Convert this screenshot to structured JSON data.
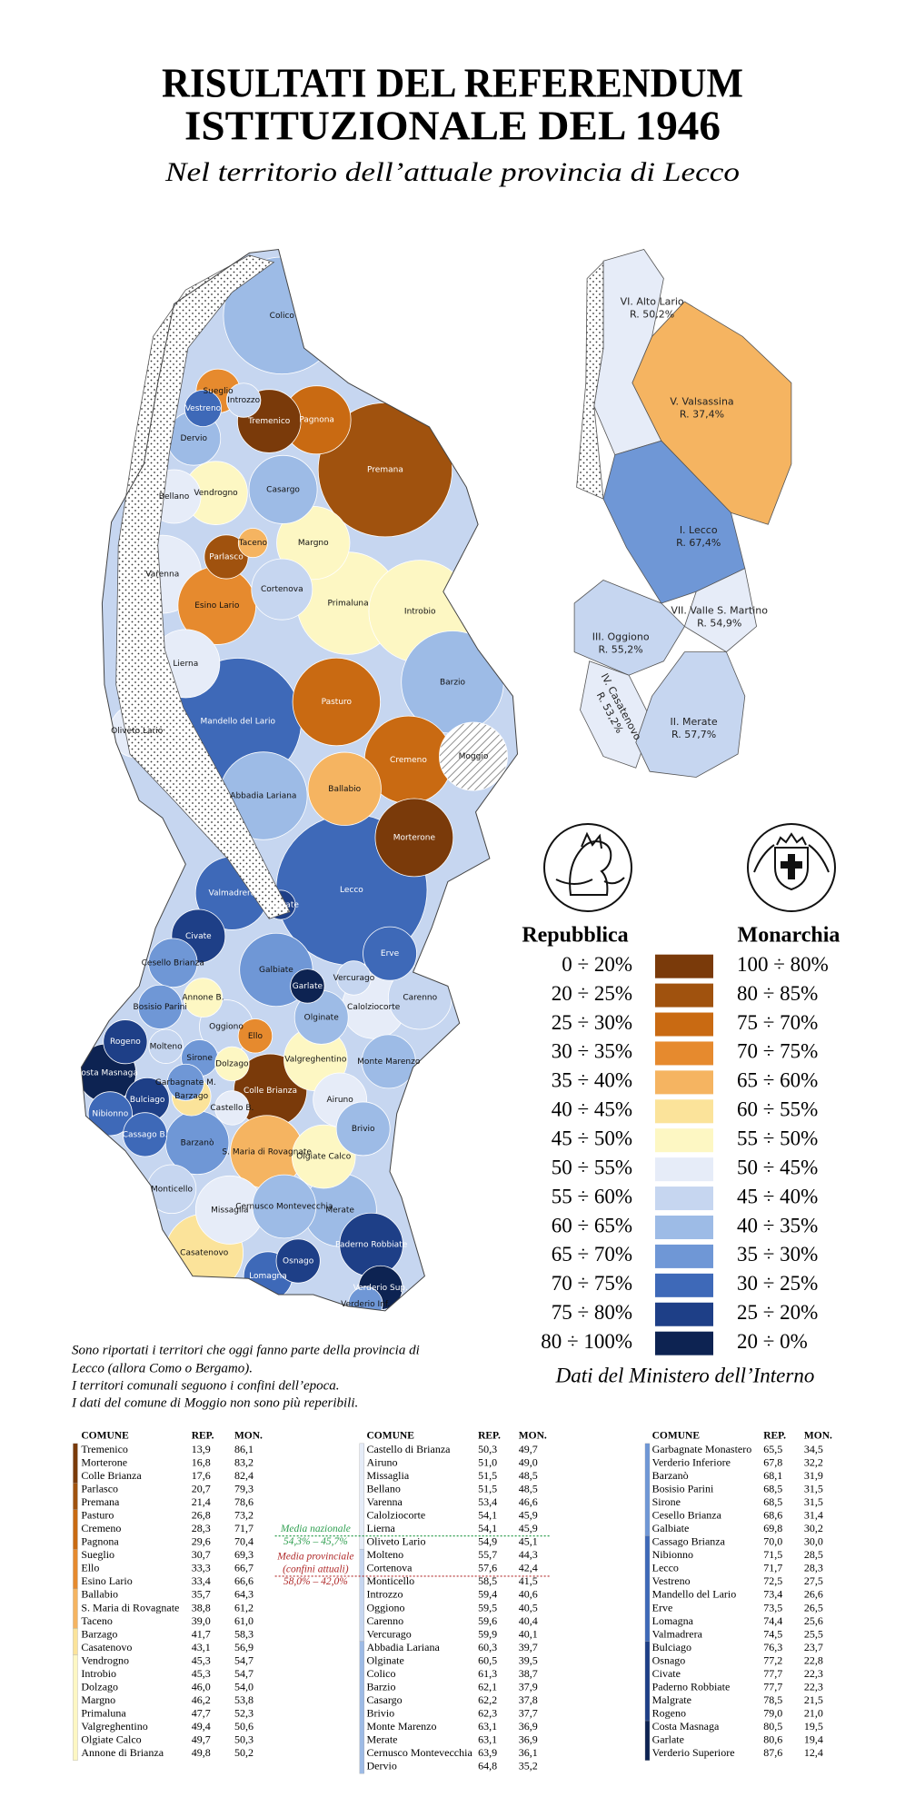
{
  "header": {
    "title_lines": [
      "RISULTATI DEL REFERENDUM",
      "ISTITUZIONALE DEL 1946"
    ],
    "subtitle": "Nel territorio dell’attuale provincia di Lecco"
  },
  "map": {
    "municipalities": [
      {
        "name": "Colico",
        "color": "#9dbbe6"
      },
      {
        "name": "Sueglio",
        "color": "#e68a2e"
      },
      {
        "name": "Vestreno",
        "color": "#3e69b8"
      },
      {
        "name": "Introzzo",
        "color": "#c6d6f0"
      },
      {
        "name": "Tremenico",
        "color": "#7a3a0a"
      },
      {
        "name": "Pagnona",
        "color": "#c96a12"
      },
      {
        "name": "Premana",
        "color": "#a0520e"
      },
      {
        "name": "Dervio",
        "color": "#9dbbe6"
      },
      {
        "name": "Bellano",
        "color": "#e6ecf8"
      },
      {
        "name": "Vendrogno",
        "color": "#fdf7c3"
      },
      {
        "name": "Casargo",
        "color": "#9dbbe6"
      },
      {
        "name": "Taceno",
        "color": "#f5b461"
      },
      {
        "name": "Parlasco",
        "color": "#a0520e"
      },
      {
        "name": "Margno",
        "color": "#fdf7c3"
      },
      {
        "name": "Varenna",
        "color": "#e6ecf8"
      },
      {
        "name": "Esino Lario",
        "color": "#e68a2e"
      },
      {
        "name": "Cortenova",
        "color": "#c6d6f0"
      },
      {
        "name": "Primaluna",
        "color": "#fdf7c3"
      },
      {
        "name": "Introbio",
        "color": "#fdf7c3"
      },
      {
        "name": "Lierna",
        "color": "#e6ecf8"
      },
      {
        "name": "Barzio",
        "color": "#9dbbe6"
      },
      {
        "name": "Pasturo",
        "color": "#c96a12"
      },
      {
        "name": "Mandello del Lario",
        "color": "#3e69b8"
      },
      {
        "name": "Cremeno",
        "color": "#c96a12"
      },
      {
        "name": "Moggio",
        "color": "#e8e8e8",
        "hatched": true
      },
      {
        "name": "Abbadia Lariana",
        "color": "#9dbbe6"
      },
      {
        "name": "Ballabio",
        "color": "#f5b461"
      },
      {
        "name": "Morterone",
        "color": "#7a3a0a"
      },
      {
        "name": "Oliveto Lario",
        "color": "#e6ecf8"
      },
      {
        "name": "Lecco",
        "color": "#3e69b8"
      },
      {
        "name": "Valmadrera",
        "color": "#3e69b8"
      },
      {
        "name": "Malgrate",
        "color": "#1e3f87"
      },
      {
        "name": "Civate",
        "color": "#1e3f87"
      },
      {
        "name": "Cesello Brianza",
        "color": "#6f97d6"
      },
      {
        "name": "Galbiate",
        "color": "#6f97d6"
      },
      {
        "name": "Erve",
        "color": "#3e69b8"
      },
      {
        "name": "Garlate",
        "color": "#0d2352"
      },
      {
        "name": "Vercurago",
        "color": "#c6d6f0"
      },
      {
        "name": "Calolziocorte",
        "color": "#e6ecf8"
      },
      {
        "name": "Carenno",
        "color": "#c6d6f0"
      },
      {
        "name": "Bosisio Parini",
        "color": "#6f97d6"
      },
      {
        "name": "Annone B.",
        "color": "#fdf7c3"
      },
      {
        "name": "Oggiono",
        "color": "#c6d6f0"
      },
      {
        "name": "Olginate",
        "color": "#9dbbe6"
      },
      {
        "name": "Rogeno",
        "color": "#1e3f87"
      },
      {
        "name": "Molteno",
        "color": "#c6d6f0"
      },
      {
        "name": "Sirone",
        "color": "#6f97d6"
      },
      {
        "name": "Ello",
        "color": "#e68a2e"
      },
      {
        "name": "Dolzago",
        "color": "#fdf7c3"
      },
      {
        "name": "Valgreghentino",
        "color": "#fdf7c3"
      },
      {
        "name": "Monte Marenzo",
        "color": "#9dbbe6"
      },
      {
        "name": "Costa Masnaga",
        "color": "#0d2352"
      },
      {
        "name": "Garbagnate M.",
        "color": "#6f97d6"
      },
      {
        "name": "Colle Brianza",
        "color": "#7a3a0a"
      },
      {
        "name": "Bulciago",
        "color": "#1e3f87"
      },
      {
        "name": "Barzago",
        "color": "#fbe39a"
      },
      {
        "name": "Castello B.",
        "color": "#e6ecf8"
      },
      {
        "name": "Airuno",
        "color": "#e6ecf8"
      },
      {
        "name": "Nibionno",
        "color": "#3e69b8"
      },
      {
        "name": "Cassago B.",
        "color": "#3e69b8"
      },
      {
        "name": "Barzanò",
        "color": "#6f97d6"
      },
      {
        "name": "S. Maria di Rovagnate",
        "color": "#f5b461"
      },
      {
        "name": "Olgiate Calco",
        "color": "#fdf7c3"
      },
      {
        "name": "Brivio",
        "color": "#9dbbe6"
      },
      {
        "name": "Monticello",
        "color": "#c6d6f0"
      },
      {
        "name": "Missaglia",
        "color": "#e6ecf8"
      },
      {
        "name": "Cernusco Montevecchia",
        "color": "#9dbbe6"
      },
      {
        "name": "Merate",
        "color": "#9dbbe6"
      },
      {
        "name": "Paderno Robbiate",
        "color": "#1e3f87"
      },
      {
        "name": "Casatenovo",
        "color": "#fbe39a"
      },
      {
        "name": "Lomagna",
        "color": "#3e69b8"
      },
      {
        "name": "Osnago",
        "color": "#1e3f87"
      },
      {
        "name": "Verderio Sup.",
        "color": "#0d2352"
      },
      {
        "name": "Verderio Inf.",
        "color": "#6f97d6"
      }
    ],
    "districts": [
      {
        "name": "VI. Alto Lario",
        "result": "R. 50,2%",
        "color": "#e6ecf8"
      },
      {
        "name": "V. Valsassina",
        "result": "R. 37,4%",
        "color": "#f5b461"
      },
      {
        "name": "I. Lecco",
        "result": "R. 67,4%",
        "color": "#6f97d6"
      },
      {
        "name": "VII. Valle S. Martino",
        "result": "R. 54,9%",
        "color": "#e6ecf8"
      },
      {
        "name": "III. Oggiono",
        "result": "R. 55,2%",
        "color": "#c6d6f0"
      },
      {
        "name": "IV. Casatenovo",
        "result": "R. 53,2%",
        "color": "#e6ecf8"
      },
      {
        "name": "II. Merate",
        "result": "R. 57,7%",
        "color": "#c6d6f0"
      }
    ]
  },
  "legend": {
    "republic_heading": "Repubblica",
    "monarchy_heading": "Monarchia",
    "rows": [
      {
        "republic": "0 ÷ 20%",
        "monarchy": "100 ÷ 80%",
        "color": "#7a3a0a"
      },
      {
        "republic": "20 ÷ 25%",
        "monarchy": "80 ÷ 85%",
        "color": "#a0520e"
      },
      {
        "republic": "25 ÷ 30%",
        "monarchy": "75 ÷ 70%",
        "color": "#c96a12"
      },
      {
        "republic": "30 ÷ 35%",
        "monarchy": "70 ÷ 75%",
        "color": "#e68a2e"
      },
      {
        "republic": "35 ÷ 40%",
        "monarchy": "65 ÷ 60%",
        "color": "#f5b461"
      },
      {
        "republic": "40 ÷ 45%",
        "monarchy": "60 ÷ 55%",
        "color": "#fbe39a"
      },
      {
        "republic": "45 ÷ 50%",
        "monarchy": "55 ÷ 50%",
        "color": "#fdf7c3"
      },
      {
        "republic": "50 ÷ 55%",
        "monarchy": "50 ÷ 45%",
        "color": "#e6ecf8"
      },
      {
        "republic": "55 ÷ 60%",
        "monarchy": "45 ÷ 40%",
        "color": "#c6d6f0"
      },
      {
        "republic": "60 ÷ 65%",
        "monarchy": "40 ÷ 35%",
        "color": "#9dbbe6"
      },
      {
        "republic": "65 ÷ 70%",
        "monarchy": "35 ÷ 30%",
        "color": "#6f97d6"
      },
      {
        "republic": "70 ÷ 75%",
        "monarchy": "30 ÷ 25%",
        "color": "#3e69b8"
      },
      {
        "republic": "75 ÷ 80%",
        "monarchy": "25 ÷ 20%",
        "color": "#1e3f87"
      },
      {
        "republic": "80 ÷ 100%",
        "monarchy": "20 ÷ 0%",
        "color": "#0d2352"
      }
    ]
  },
  "notes": [
    "Sono riportati i territori che oggi fanno parte della provincia di",
    "Lecco (allora Como o Bergamo).",
    "I territori comunali seguono i confini dell’epoca.",
    "I dati del comune di Moggio non sono più reperibili."
  ],
  "source": "Dati del Ministero dell’Interno",
  "table": {
    "header": [
      "COMUNE",
      "REP.",
      "MON."
    ],
    "columns": [
      [
        {
          "color": "#7a3a0a",
          "rows": [
            [
              "Tremenico",
              "13,9",
              "86,1"
            ],
            [
              "Morterone",
              "16,8",
              "83,2"
            ],
            [
              "Colle Brianza",
              "17,6",
              "82,4"
            ]
          ]
        },
        {
          "color": "#a0520e",
          "rows": [
            [
              "Parlasco",
              "20,7",
              "79,3"
            ],
            [
              "Premana",
              "21,4",
              "78,6"
            ]
          ]
        },
        {
          "color": "#c96a12",
          "rows": [
            [
              "Pasturo",
              "26,8",
              "73,2"
            ],
            [
              "Cremeno",
              "28,3",
              "71,7"
            ],
            [
              "Pagnona",
              "29,6",
              "70,4"
            ]
          ]
        },
        {
          "color": "#e68a2e",
          "rows": [
            [
              "Sueglio",
              "30,7",
              "69,3"
            ],
            [
              "Ello",
              "33,3",
              "66,7"
            ],
            [
              "Esino Lario",
              "33,4",
              "66,6"
            ]
          ]
        },
        {
          "color": "#f5b461",
          "rows": [
            [
              "Ballabio",
              "35,7",
              "64,3"
            ],
            [
              "S. Maria di Rovagnate",
              "38,8",
              "61,2"
            ],
            [
              "Taceno",
              "39,0",
              "61,0"
            ]
          ]
        },
        {
          "color": "#fbe39a",
          "rows": [
            [
              "Barzago",
              "41,7",
              "58,3"
            ],
            [
              "Casatenovo",
              "43,1",
              "56,9"
            ]
          ]
        },
        {
          "color": "#fdf7c3",
          "rows": [
            [
              "Vendrogno",
              "45,3",
              "54,7"
            ],
            [
              "Introbio",
              "45,3",
              "54,7"
            ],
            [
              "Dolzago",
              "46,0",
              "54,0"
            ],
            [
              "Margno",
              "46,2",
              "53,8"
            ],
            [
              "Primaluna",
              "47,7",
              "52,3"
            ],
            [
              "Valgreghentino",
              "49,4",
              "50,6"
            ],
            [
              "Olgiate Calco",
              "49,7",
              "50,3"
            ],
            [
              "Annone di Brianza",
              "49,8",
              "50,2"
            ]
          ]
        }
      ],
      [
        {
          "color": "#e6ecf8",
          "rows": [
            [
              "Castello di Brianza",
              "50,3",
              "49,7"
            ],
            [
              "Airuno",
              "51,0",
              "49,0"
            ],
            [
              "Missaglia",
              "51,5",
              "48,5"
            ],
            [
              "Bellano",
              "51,5",
              "48,5"
            ],
            [
              "Varenna",
              "53,4",
              "46,6"
            ],
            [
              "Calolziocorte",
              "54,1",
              "45,9"
            ],
            [
              "Lierna",
              "54,1",
              "45,9"
            ],
            [
              "Oliveto Lario",
              "54,9",
              "45,1"
            ]
          ]
        },
        {
          "color": "#c6d6f0",
          "rows": [
            [
              "Molteno",
              "55,7",
              "44,3"
            ],
            [
              "Cortenova",
              "57,6",
              "42,4"
            ],
            [
              "Monticello",
              "58,5",
              "41,5"
            ],
            [
              "Introzzo",
              "59,4",
              "40,6"
            ],
            [
              "Oggiono",
              "59,5",
              "40,5"
            ],
            [
              "Carenno",
              "59,6",
              "40,4"
            ],
            [
              "Vercurago",
              "59,9",
              "40,1"
            ]
          ]
        },
        {
          "color": "#9dbbe6",
          "rows": [
            [
              "Abbadia Lariana",
              "60,3",
              "39,7"
            ],
            [
              "Olginate",
              "60,5",
              "39,5"
            ],
            [
              "Colico",
              "61,3",
              "38,7"
            ],
            [
              "Barzio",
              "62,1",
              "37,9"
            ],
            [
              "Casargo",
              "62,2",
              "37,8"
            ],
            [
              "Brivio",
              "62,3",
              "37,7"
            ],
            [
              "Monte Marenzo",
              "63,1",
              "36,9"
            ],
            [
              "Merate",
              "63,1",
              "36,9"
            ],
            [
              "Cernusco Montevecchia",
              "63,9",
              "36,1"
            ],
            [
              "Dervio",
              "64,8",
              "35,2"
            ]
          ]
        }
      ],
      [
        {
          "color": "#6f97d6",
          "rows": [
            [
              "Garbagnate Monastero",
              "65,5",
              "34,5"
            ],
            [
              "Verderio Inferiore",
              "67,8",
              "32,2"
            ],
            [
              "Barzanò",
              "68,1",
              "31,9"
            ],
            [
              "Bosisio Parini",
              "68,5",
              "31,5"
            ],
            [
              "Sirone",
              "68,5",
              "31,5"
            ],
            [
              "Cesello Brianza",
              "68,6",
              "31,4"
            ],
            [
              "Galbiate",
              "69,8",
              "30,2"
            ]
          ]
        },
        {
          "color": "#3e69b8",
          "rows": [
            [
              "Cassago Brianza",
              "70,0",
              "30,0"
            ],
            [
              "Nibionno",
              "71,5",
              "28,5"
            ],
            [
              "Lecco",
              "71,7",
              "28,3"
            ],
            [
              "Vestreno",
              "72,5",
              "27,5"
            ],
            [
              "Mandello del Lario",
              "73,4",
              "26,6"
            ],
            [
              "Erve",
              "73,5",
              "26,5"
            ],
            [
              "Lomagna",
              "74,4",
              "25,6"
            ],
            [
              "Valmadrera",
              "74,5",
              "25,5"
            ]
          ]
        },
        {
          "color": "#1e3f87",
          "rows": [
            [
              "Bulciago",
              "76,3",
              "23,7"
            ],
            [
              "Osnago",
              "77,2",
              "22,8"
            ],
            [
              "Civate",
              "77,7",
              "22,3"
            ],
            [
              "Paderno Robbiate",
              "77,7",
              "22,3"
            ],
            [
              "Malgrate",
              "78,5",
              "21,5"
            ],
            [
              "Rogeno",
              "79,0",
              "21,0"
            ]
          ]
        },
        {
          "color": "#0d2352",
          "rows": [
            [
              "Costa Masnaga",
              "80,5",
              "19,5"
            ],
            [
              "Garlate",
              "80,6",
              "19,4"
            ],
            [
              "Verderio Superiore",
              "87,6",
              "12,4"
            ]
          ]
        }
      ]
    ],
    "annotations": [
      {
        "lines": [
          "Media nazionale",
          "54,3% – 45,7%"
        ],
        "color": "#2e9e4f"
      },
      {
        "lines": [
          "Media provinciale",
          "(confini attuali)",
          "58,0% – 42,0%"
        ],
        "color": "#b02a2a"
      }
    ]
  }
}
